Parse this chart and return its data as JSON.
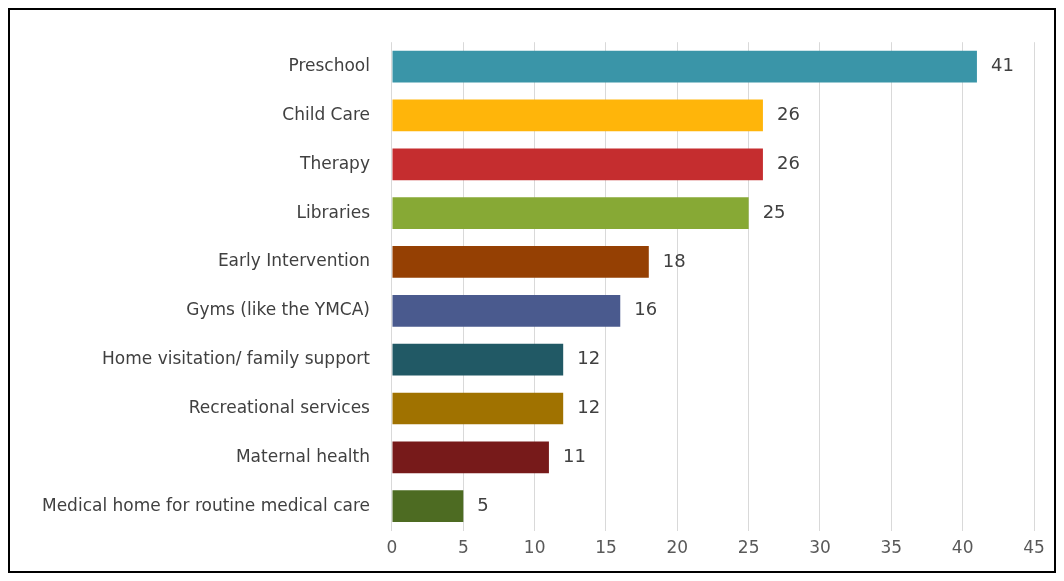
{
  "chart_data": {
    "type": "bar",
    "orientation": "horizontal",
    "categories": [
      "Preschool",
      "Child Care",
      "Therapy",
      "Libraries",
      "Early Intervention",
      "Gyms (like the YMCA)",
      "Home visitation/ family support",
      "Recreational services",
      "Maternal health",
      "Medical home for routine medical care"
    ],
    "values": [
      41,
      26,
      26,
      25,
      18,
      16,
      12,
      12,
      11,
      5
    ],
    "colors": [
      "#3a95a8",
      "#ffb50a",
      "#c52d2f",
      "#87a935",
      "#954003",
      "#4a5a8e",
      "#215965",
      "#a07200",
      "#771a1a",
      "#4d6b22"
    ],
    "xlim": [
      0,
      45
    ],
    "xticks": [
      0,
      5,
      10,
      15,
      20,
      25,
      30,
      35,
      40,
      45
    ],
    "grid": "x",
    "data_labels": true,
    "legend": false
  }
}
